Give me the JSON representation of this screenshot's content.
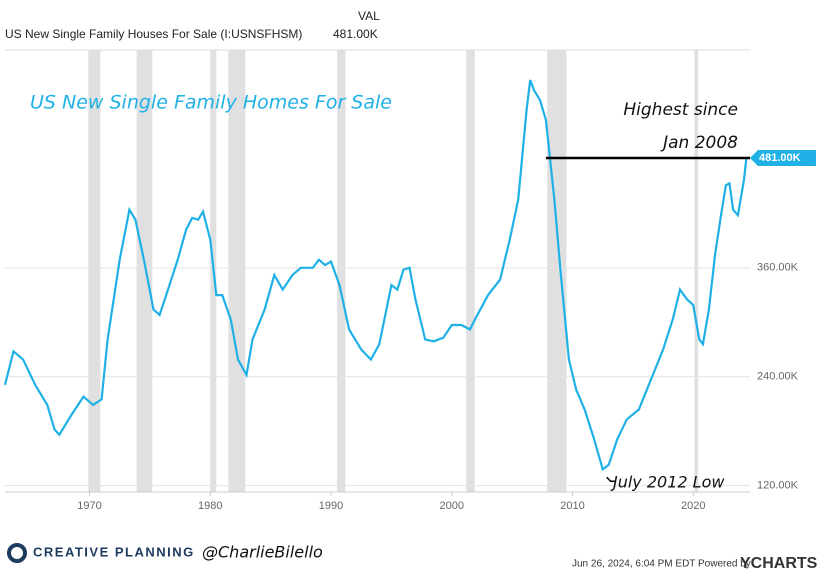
{
  "chart_data": {
    "type": "line",
    "title": "US New Single Family Homes For Sale",
    "header_col": "VAL",
    "annotations": {
      "high": [
        "Highest  since",
        "Jan 2008"
      ],
      "low": "July 2012 Low"
    },
    "current_label": "481.00K",
    "footer": {
      "brand": "CREATIVE PLANNING",
      "handle": "@CharlieBilello",
      "stamp": "Jun 26, 2024, 6:04 PM EDT Powered by",
      "logo": "YCHARTS"
    },
    "x": [
      1963.0,
      1963.7,
      1964.5,
      1965.5,
      1966.5,
      1967.1,
      1967.5,
      1968.5,
      1969.5,
      1970.3,
      1971.0,
      1971.5,
      1972.5,
      1973.3,
      1973.8,
      1974.5,
      1975.3,
      1975.8,
      1976.5,
      1977.3,
      1978.0,
      1978.5,
      1979.0,
      1979.4,
      1980.0,
      1980.5,
      1981.0,
      1981.7,
      1982.3,
      1983.0,
      1983.5,
      1984.5,
      1985.3,
      1986.0,
      1986.8,
      1987.5,
      1988.5,
      1989.0,
      1989.5,
      1990.0,
      1990.7,
      1991.5,
      1992.5,
      1993.3,
      1994.0,
      1995.0,
      1995.5,
      1996.0,
      1996.5,
      1997.0,
      1997.8,
      1998.5,
      1999.3,
      2000.0,
      2000.8,
      2001.5,
      2002.0,
      2003.0,
      2004.0,
      2004.8,
      2005.5,
      2006.2,
      2006.5,
      2006.8,
      2007.3,
      2007.8,
      2008.5,
      2009.0,
      2009.7,
      2010.3,
      2011.0,
      2011.8,
      2012.5,
      2013.0,
      2013.7,
      2014.5,
      2015.5,
      2016.5,
      2017.5,
      2018.3,
      2018.9,
      2019.5,
      2020.0,
      2020.5,
      2020.8,
      2021.3,
      2021.8,
      2022.3,
      2022.7,
      2023.0,
      2023.3,
      2023.7,
      2024.2,
      2024.4
    ],
    "series": [
      {
        "name": "US New Single Family Houses For Sale (I:USNSFHSM)",
        "color": "#1fb1e6",
        "values": [
          231,
          268,
          259,
          231,
          209,
          182,
          176,
          198,
          218,
          209,
          215,
          281,
          369,
          424,
          413,
          369,
          314,
          308,
          336,
          369,
          402,
          415,
          413,
          422,
          391,
          330,
          330,
          303,
          259,
          242,
          281,
          314,
          352,
          336,
          352,
          360,
          360,
          369,
          363,
          367,
          341,
          292,
          270,
          259,
          276,
          341,
          336,
          358,
          360,
          325,
          281,
          279,
          283,
          297,
          297,
          292,
          305,
          330,
          347,
          391,
          435,
          534,
          567,
          556,
          545,
          523,
          435,
          358,
          259,
          226,
          204,
          171,
          138,
          143,
          171,
          193,
          204,
          237,
          270,
          303,
          336,
          325,
          319,
          281,
          276,
          314,
          374,
          418,
          451,
          453,
          424,
          418,
          457,
          481
        ]
      }
    ],
    "recessions": [
      [
        1969.9,
        1970.9
      ],
      [
        1973.9,
        1975.2
      ],
      [
        1980.0,
        1980.5
      ],
      [
        1981.5,
        1982.9
      ],
      [
        1990.5,
        1991.2
      ],
      [
        2001.2,
        2001.9
      ],
      [
        2007.9,
        2009.5
      ],
      [
        2020.1,
        2020.4
      ]
    ],
    "recession_color": "#e0e0e0",
    "xlim": [
      1963,
      2024.7
    ],
    "xticks": [
      1970,
      1980,
      1990,
      2000,
      2010,
      2020
    ],
    "ylim": [
      113,
      600
    ],
    "yticks": [
      {
        "value": 120,
        "label": "120.00K"
      },
      {
        "value": 240,
        "label": "240.00K"
      },
      {
        "value": 360,
        "label": "360.00K"
      }
    ],
    "grid": true
  }
}
